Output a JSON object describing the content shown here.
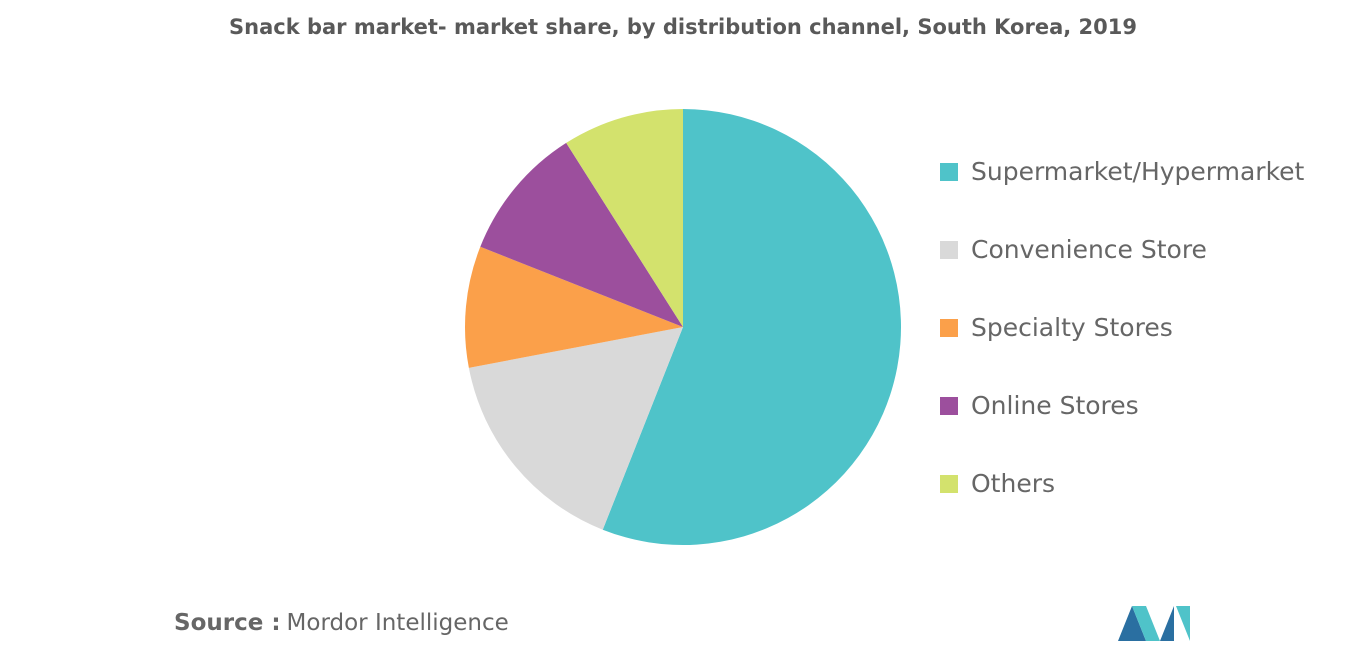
{
  "chart_data": {
    "type": "pie",
    "title": "Snack bar market- market share, by distribution channel, South Korea, 2019",
    "categories": [
      "Supermarket/Hypermarket",
      "Convenience Store",
      "Specialty Stores",
      "Online Stores",
      "Others"
    ],
    "values": [
      56,
      16,
      9,
      10,
      9
    ],
    "colors": [
      "#4fc3c9",
      "#d9d9d9",
      "#fba04a",
      "#9c4f9d",
      "#d3e26d"
    ],
    "legend": "right"
  },
  "source_label": "Source :",
  "source": "Mordor Intelligence"
}
